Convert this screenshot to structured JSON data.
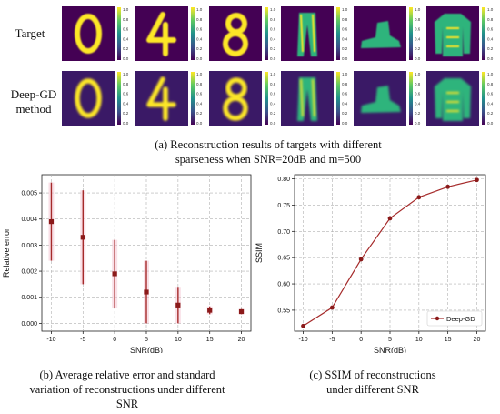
{
  "figure": {
    "rows": [
      {
        "label": "Target"
      },
      {
        "label": "Deep-GD\nmethod"
      }
    ],
    "thumbnails": [
      {
        "subject": "digit-0"
      },
      {
        "subject": "digit-4"
      },
      {
        "subject": "digit-8"
      },
      {
        "subject": "trousers"
      },
      {
        "subject": "ankle-boot"
      },
      {
        "subject": "sweater"
      }
    ],
    "colorbar_ticks": [
      "1.0",
      "0.8",
      "0.6",
      "0.4",
      "0.2",
      "0.0"
    ],
    "colors": {
      "viridis_low": "#440154",
      "viridis_mid": "#3b528b",
      "viridis_high": "#fde725",
      "series": "#a52a2a"
    },
    "caption_a": "(a) Reconstruction results of targets with different sparseness when SNR=20dB and m=500",
    "caption_b": "(b) Average relative error and standard variation of reconstructions under different SNR",
    "caption_c": "(c) SSIM of reconstructions under different SNR"
  },
  "chart_data": [
    {
      "type": "scatter",
      "error_bars": true,
      "x": [
        -10,
        -5,
        0,
        5,
        10,
        15,
        20
      ],
      "y": [
        0.0039,
        0.0033,
        0.0019,
        0.0012,
        0.0007,
        0.0005,
        0.00045
      ],
      "err": [
        0.0015,
        0.0018,
        0.0013,
        0.0012,
        0.0007,
        0.00015,
        0.0001
      ],
      "xlabel": "SNR(dB)",
      "ylabel": "Relative error",
      "xticks": [
        "-10",
        "-5",
        "0",
        "5",
        "10",
        "15",
        "20"
      ],
      "yticks": [
        "0.000",
        "0.001",
        "0.002",
        "0.003",
        "0.004",
        "0.005"
      ],
      "xlim": [
        -11.5,
        21.5
      ],
      "ylim": [
        -0.0003,
        0.0057
      ],
      "grid": true
    },
    {
      "type": "line",
      "x": [
        -10,
        -5,
        0,
        5,
        10,
        15,
        20
      ],
      "series": [
        {
          "name": "Deep-GD",
          "values": [
            0.52,
            0.555,
            0.647,
            0.725,
            0.765,
            0.785,
            0.798
          ]
        }
      ],
      "xlabel": "SNR(dB)",
      "ylabel": "SSIM",
      "xticks": [
        "-10",
        "-5",
        "0",
        "5",
        "10",
        "15",
        "20"
      ],
      "yticks": [
        "0.55",
        "0.60",
        "0.65",
        "0.70",
        "0.75",
        "0.80"
      ],
      "xlim": [
        -11.5,
        21.5
      ],
      "ylim": [
        0.51,
        0.808
      ],
      "grid": true,
      "legend": "bottom-right"
    }
  ]
}
